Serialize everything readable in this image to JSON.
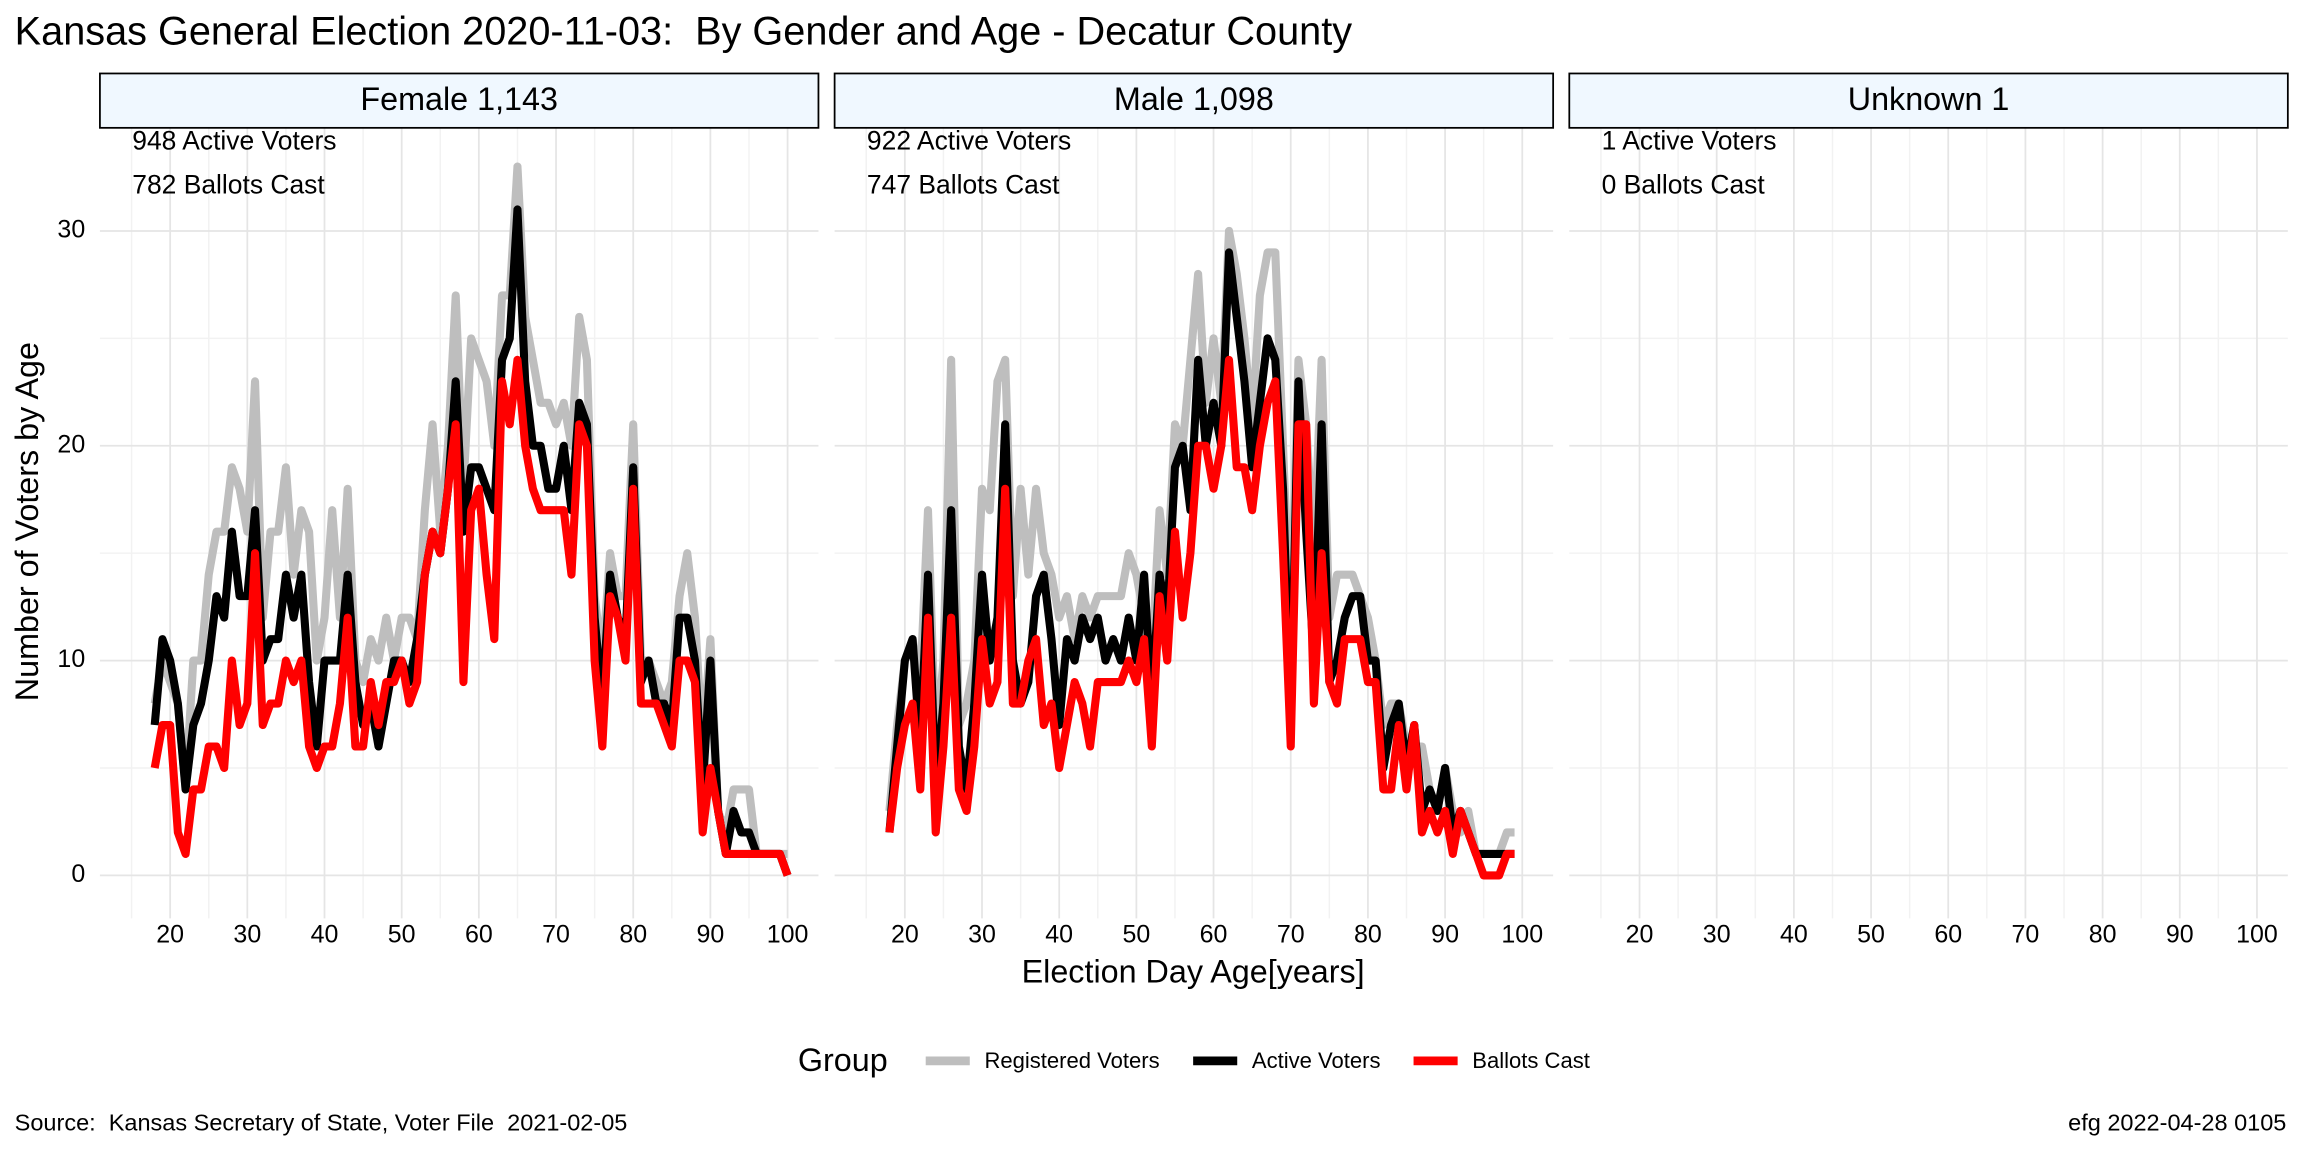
{
  "title": "Kansas General Election 2020-11-03:  By Gender and Age - Decatur County",
  "x_label": "Election Day Age[years]",
  "y_label": "Number of Voters by Age",
  "legend_title": "Group",
  "source": "Source:  Kansas Secretary of State, Voter File  2021-02-05",
  "credit": "efg 2022-04-28 0105",
  "chart_data": [
    {
      "type": "line",
      "title": "Female 1,143",
      "annotations": [
        "948 Active Voters",
        "782 Ballots Cast"
      ],
      "x": [
        18,
        19,
        20,
        21,
        22,
        23,
        24,
        25,
        26,
        27,
        28,
        29,
        30,
        31,
        32,
        33,
        34,
        35,
        36,
        37,
        38,
        39,
        40,
        41,
        42,
        43,
        44,
        45,
        46,
        47,
        48,
        49,
        50,
        51,
        52,
        53,
        54,
        55,
        56,
        57,
        58,
        59,
        60,
        61,
        62,
        63,
        64,
        65,
        66,
        67,
        68,
        69,
        70,
        71,
        72,
        73,
        74,
        75,
        76,
        77,
        78,
        79,
        80,
        81,
        82,
        83,
        84,
        85,
        86,
        87,
        88,
        89,
        90,
        91,
        92,
        93,
        94,
        95,
        96,
        97,
        98,
        99,
        100
      ],
      "series": [
        {
          "name": "Registered Voters",
          "color": "#bebebe",
          "values": [
            8,
            10,
            9,
            8,
            4,
            10,
            10,
            14,
            16,
            16,
            19,
            18,
            16,
            23,
            12,
            16,
            16,
            19,
            14,
            17,
            16,
            10,
            12,
            17,
            12,
            18,
            10,
            9,
            11,
            10,
            12,
            10,
            12,
            12,
            11,
            17,
            21,
            16,
            20,
            27,
            18,
            25,
            24,
            23,
            20,
            27,
            27,
            33,
            26,
            24,
            22,
            22,
            21,
            22,
            20,
            26,
            24,
            13,
            10,
            15,
            13,
            13,
            21,
            10,
            10,
            9,
            8,
            9,
            13,
            15,
            12,
            6,
            11,
            3,
            2,
            4,
            4,
            4,
            1,
            1,
            1,
            1,
            1
          ]
        },
        {
          "name": "Active Voters",
          "color": "#000000",
          "values": [
            7,
            11,
            10,
            8,
            4,
            7,
            8,
            10,
            13,
            12,
            16,
            13,
            13,
            17,
            10,
            11,
            11,
            14,
            12,
            14,
            9,
            6,
            10,
            10,
            10,
            14,
            9,
            7,
            8,
            6,
            8,
            10,
            10,
            9,
            11,
            14,
            16,
            15,
            18,
            23,
            16,
            19,
            19,
            18,
            17,
            24,
            25,
            31,
            23,
            20,
            20,
            18,
            18,
            20,
            17,
            22,
            21,
            12,
            8,
            14,
            12,
            11,
            19,
            9,
            10,
            8,
            8,
            7,
            12,
            12,
            10,
            4,
            10,
            3,
            1,
            3,
            2,
            2,
            1,
            1,
            1,
            1,
            0
          ]
        },
        {
          "name": "Ballots Cast",
          "color": "#ff0000",
          "values": [
            5,
            7,
            7,
            2,
            1,
            4,
            4,
            6,
            6,
            5,
            10,
            7,
            8,
            15,
            7,
            8,
            8,
            10,
            9,
            10,
            6,
            5,
            6,
            6,
            8,
            12,
            6,
            6,
            9,
            7,
            9,
            9,
            10,
            8,
            9,
            14,
            16,
            15,
            18,
            21,
            9,
            17,
            18,
            14,
            11,
            23,
            21,
            24,
            20,
            18,
            17,
            17,
            17,
            17,
            14,
            21,
            20,
            10,
            6,
            13,
            12,
            10,
            18,
            8,
            8,
            8,
            7,
            6,
            10,
            10,
            9,
            2,
            5,
            3,
            1,
            1,
            1,
            1,
            1,
            1,
            1,
            1,
            0
          ]
        }
      ],
      "xlim": [
        10.9,
        104
      ],
      "ylim": [
        -2,
        34.8
      ],
      "xticks": [
        20,
        30,
        40,
        50,
        60,
        70,
        80,
        90,
        100
      ],
      "yticks": [
        0,
        10,
        20,
        30
      ],
      "minor_xticks": [
        15,
        25,
        35,
        45,
        55,
        65,
        75,
        85,
        95
      ],
      "minor_yticks": [
        5,
        15,
        25
      ],
      "grid": true
    },
    {
      "type": "line",
      "title": "Male 1,098",
      "annotations": [
        "922 Active Voters",
        "747 Ballots Cast"
      ],
      "x": [
        18,
        19,
        20,
        21,
        22,
        23,
        24,
        25,
        26,
        27,
        28,
        29,
        30,
        31,
        32,
        33,
        34,
        35,
        36,
        37,
        38,
        39,
        40,
        41,
        42,
        43,
        44,
        45,
        46,
        47,
        48,
        49,
        50,
        51,
        52,
        53,
        54,
        55,
        56,
        57,
        58,
        59,
        60,
        61,
        62,
        63,
        64,
        65,
        66,
        67,
        68,
        69,
        70,
        71,
        72,
        73,
        74,
        75,
        76,
        77,
        78,
        79,
        80,
        81,
        82,
        83,
        84,
        85,
        86,
        87,
        88,
        89,
        90,
        91,
        92,
        93,
        94,
        95,
        96,
        97,
        98,
        99
      ],
      "series": [
        {
          "name": "Registered Voters",
          "color": "#bebebe",
          "values": [
            3,
            7,
            10,
            11,
            9,
            17,
            6,
            10,
            24,
            7,
            8,
            10,
            18,
            17,
            23,
            24,
            13,
            18,
            14,
            18,
            15,
            14,
            12,
            13,
            11,
            13,
            12,
            13,
            13,
            13,
            13,
            15,
            14,
            12,
            10,
            17,
            14,
            21,
            20,
            24,
            28,
            22,
            25,
            22,
            30,
            28,
            25,
            21,
            27,
            29,
            29,
            20,
            11,
            24,
            21,
            15,
            24,
            12,
            14,
            14,
            14,
            13,
            12,
            10,
            7,
            8,
            8,
            6,
            6,
            6,
            4,
            3,
            5,
            3,
            2,
            3,
            1,
            1,
            1,
            1,
            2,
            2
          ]
        },
        {
          "name": "Active Voters",
          "color": "#000000",
          "values": [
            2,
            6,
            10,
            11,
            6,
            14,
            4,
            8,
            17,
            6,
            4,
            8,
            14,
            10,
            12,
            21,
            10,
            8,
            9,
            13,
            14,
            11,
            7,
            11,
            10,
            12,
            11,
            12,
            10,
            11,
            10,
            12,
            10,
            14,
            8,
            14,
            12,
            19,
            20,
            17,
            24,
            20,
            22,
            20,
            29,
            26,
            23,
            19,
            22,
            25,
            24,
            18,
            7,
            23,
            16,
            10,
            21,
            9,
            10,
            12,
            13,
            13,
            10,
            10,
            5,
            7,
            8,
            5,
            7,
            3,
            4,
            3,
            5,
            2,
            3,
            2,
            1,
            1,
            1,
            1,
            1,
            1
          ]
        },
        {
          "name": "Ballots Cast",
          "color": "#ff0000",
          "values": [
            2,
            5,
            7,
            8,
            4,
            12,
            2,
            6,
            12,
            4,
            3,
            6,
            11,
            8,
            9,
            18,
            8,
            8,
            10,
            11,
            7,
            8,
            5,
            7,
            9,
            8,
            6,
            9,
            9,
            9,
            9,
            10,
            9,
            11,
            6,
            13,
            10,
            16,
            12,
            15,
            20,
            20,
            18,
            20,
            24,
            19,
            19,
            17,
            20,
            22,
            23,
            15,
            6,
            21,
            21,
            8,
            15,
            9,
            8,
            11,
            11,
            11,
            9,
            9,
            4,
            4,
            7,
            4,
            7,
            2,
            3,
            2,
            3,
            1,
            3,
            2,
            1,
            0,
            0,
            0,
            1,
            1
          ]
        }
      ],
      "xlim": [
        10.9,
        104
      ],
      "ylim": [
        -2,
        34.8
      ],
      "xticks": [
        20,
        30,
        40,
        50,
        60,
        70,
        80,
        90,
        100
      ],
      "yticks": [
        0,
        10,
        20,
        30
      ],
      "minor_xticks": [
        15,
        25,
        35,
        45,
        55,
        65,
        75,
        85,
        95
      ],
      "minor_yticks": [
        5,
        15,
        25
      ],
      "grid": true
    },
    {
      "type": "line",
      "title": "Unknown 1",
      "annotations": [
        "1 Active Voters",
        "0 Ballots Cast"
      ],
      "x": [],
      "series": [],
      "xlim": [
        10.9,
        104
      ],
      "ylim": [
        -2,
        34.8
      ],
      "xticks": [
        20,
        30,
        40,
        50,
        60,
        70,
        80,
        90,
        100
      ],
      "yticks": [
        0,
        10,
        20,
        30
      ],
      "minor_xticks": [
        15,
        25,
        35,
        45,
        55,
        65,
        75,
        85,
        95
      ],
      "minor_yticks": [
        5,
        15,
        25
      ],
      "grid": true
    }
  ]
}
